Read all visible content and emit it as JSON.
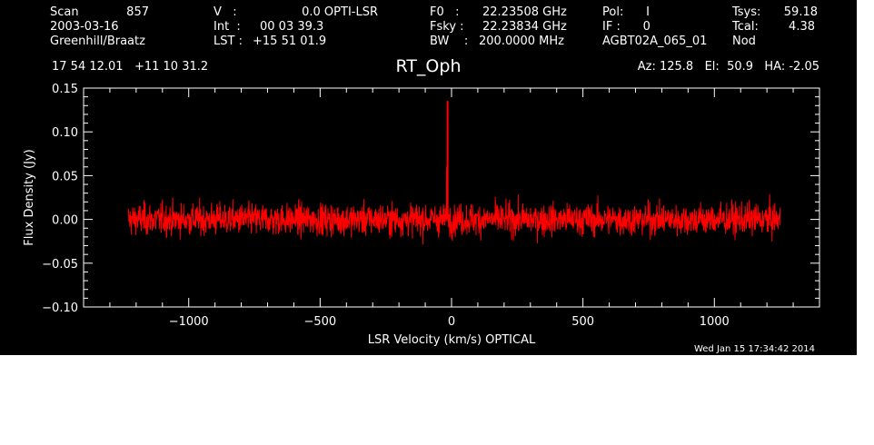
{
  "header": {
    "col1": [
      "Scan",
      "2003-03-16",
      "Greenhill/Braatz"
    ],
    "col1_value": "857",
    "col2_labels": [
      "V   :",
      "Int  :",
      "LST :"
    ],
    "col2_values": [
      "0.0 OPTI-LSR",
      "00 03 39.3",
      "+15 51 01.9"
    ],
    "col3_labels": [
      "F0   :",
      "Fsky :",
      "BW    :"
    ],
    "col3_values": [
      "22.23508 GHz",
      "22.23834 GHz",
      "200.0000 MHz"
    ],
    "col4": [
      "Pol:      I",
      "IF :      0",
      "AGBT02A_065_01"
    ],
    "col5_labels": [
      "Tsys:",
      "Tcal:",
      "Nod"
    ],
    "col5_values": [
      "59.18",
      "4.38"
    ],
    "coords": "17 54 12.01   +11 10 31.2",
    "azel": "Az: 125.8   El:  50.9   HA: -2.05"
  },
  "footer": {
    "timestamp": "Wed Jan 15 17:34:42 2014"
  },
  "colors": {
    "background": "#000000",
    "axes": "#ffffff",
    "series": "#ff0000"
  },
  "chart_data": {
    "type": "line",
    "title": "RT_Oph",
    "xlabel": "LSR Velocity (km/s) OPTICAL",
    "ylabel": "Flux Density (Jy)",
    "xlim": [
      -1400,
      1400
    ],
    "ylim": [
      -0.1,
      0.15
    ],
    "xticks": [
      -1000,
      -500,
      0,
      500,
      1000
    ],
    "xtick_labels": [
      "−1000",
      "−500",
      "0",
      "500",
      "1000"
    ],
    "yticks": [
      -0.1,
      -0.05,
      0.0,
      0.05,
      0.1,
      0.15
    ],
    "ytick_labels": [
      "−0.10",
      "−0.05",
      "0.00",
      "0.05",
      "0.10",
      "0.15"
    ],
    "grid": false,
    "series": [
      {
        "x_range": [
          -1230,
          1250
        ],
        "baseline": 0.0,
        "noise_rms": 0.012,
        "peak": {
          "x": -15,
          "y": 0.135
        },
        "secondary_peak": {
          "x": -18,
          "y": 0.06
        }
      }
    ]
  }
}
